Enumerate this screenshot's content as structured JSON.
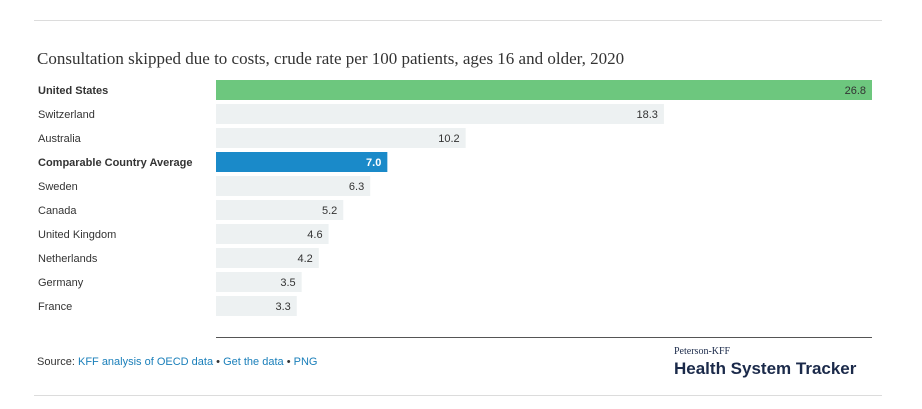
{
  "title": "Consultation skipped due to costs, crude rate per 100 patients, ages 16 and older, 2020",
  "colors": {
    "highlight_us": "#6dc77e",
    "highlight_avg": "#1a8ac9",
    "track": "#edf1f2",
    "text": "#333333",
    "link": "#1a7fba"
  },
  "footer": {
    "source_label": "Source:",
    "source_link": "KFF analysis of OECD data",
    "sep1": "•",
    "get_data": "Get the data",
    "sep2": "•",
    "png": "PNG"
  },
  "brand": {
    "small": "Peterson-KFF",
    "big": "Health System Tracker"
  },
  "chart_data": {
    "type": "bar",
    "orientation": "horizontal",
    "xlim": [
      0,
      26.8
    ],
    "grid": false,
    "categories": [
      "United States",
      "Switzerland",
      "Australia",
      "Comparable Country Average",
      "Sweden",
      "Canada",
      "United Kingdom",
      "Netherlands",
      "Germany",
      "France"
    ],
    "values": [
      26.8,
      18.3,
      10.2,
      7.0,
      6.3,
      5.2,
      4.6,
      4.2,
      3.5,
      3.3
    ],
    "value_labels": [
      "26.8",
      "18.3",
      "10.2",
      "7.0",
      "6.3",
      "5.2",
      "4.6",
      "4.2",
      "3.5",
      "3.3"
    ],
    "highlights": {
      "United States": "highlight_us",
      "Comparable Country Average": "highlight_avg"
    },
    "bold_categories": [
      "United States",
      "Comparable Country Average"
    ]
  }
}
